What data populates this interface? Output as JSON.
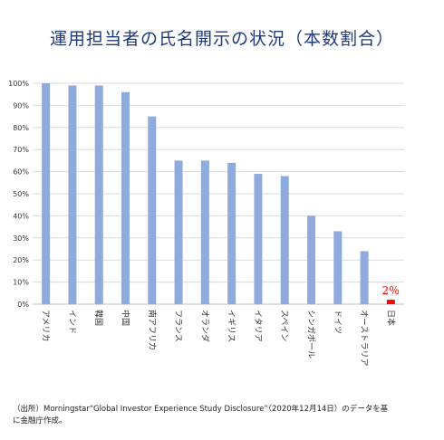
{
  "chart_data": {
    "type": "bar",
    "title": "運用担当者の氏名開示の状況（本数割合）",
    "categories": [
      "アメリカ",
      "インド",
      "韓国",
      "中国",
      "南アフリカ",
      "フランス",
      "オランダ",
      "イギリス",
      "イタリア",
      "スペイン",
      "シンガポール",
      "ドイツ",
      "オーストラリア",
      "日本"
    ],
    "values": [
      100,
      99,
      99,
      96,
      85,
      65,
      65,
      64,
      59,
      58,
      40,
      33,
      24,
      2
    ],
    "ylim": [
      0,
      100
    ],
    "y_ticks": [
      "0%",
      "10%",
      "20%",
      "30%",
      "40%",
      "50%",
      "60%",
      "70%",
      "80%",
      "90%",
      "100%"
    ],
    "grid": true,
    "colors": {
      "bar": "#8faadc",
      "highlight_bar": "#ff0000",
      "highlight_label": "#ff0000",
      "grid": "#d9d9d9",
      "title": "#1f3a7a"
    },
    "highlight": {
      "category": "日本",
      "label": "2％"
    }
  },
  "source_note": {
    "line1": "（出所）Morningstar“Global Investor Experience Study Disclosure”（2020年12月14日）のデータを基",
    "line2": "に金融庁作成。"
  }
}
